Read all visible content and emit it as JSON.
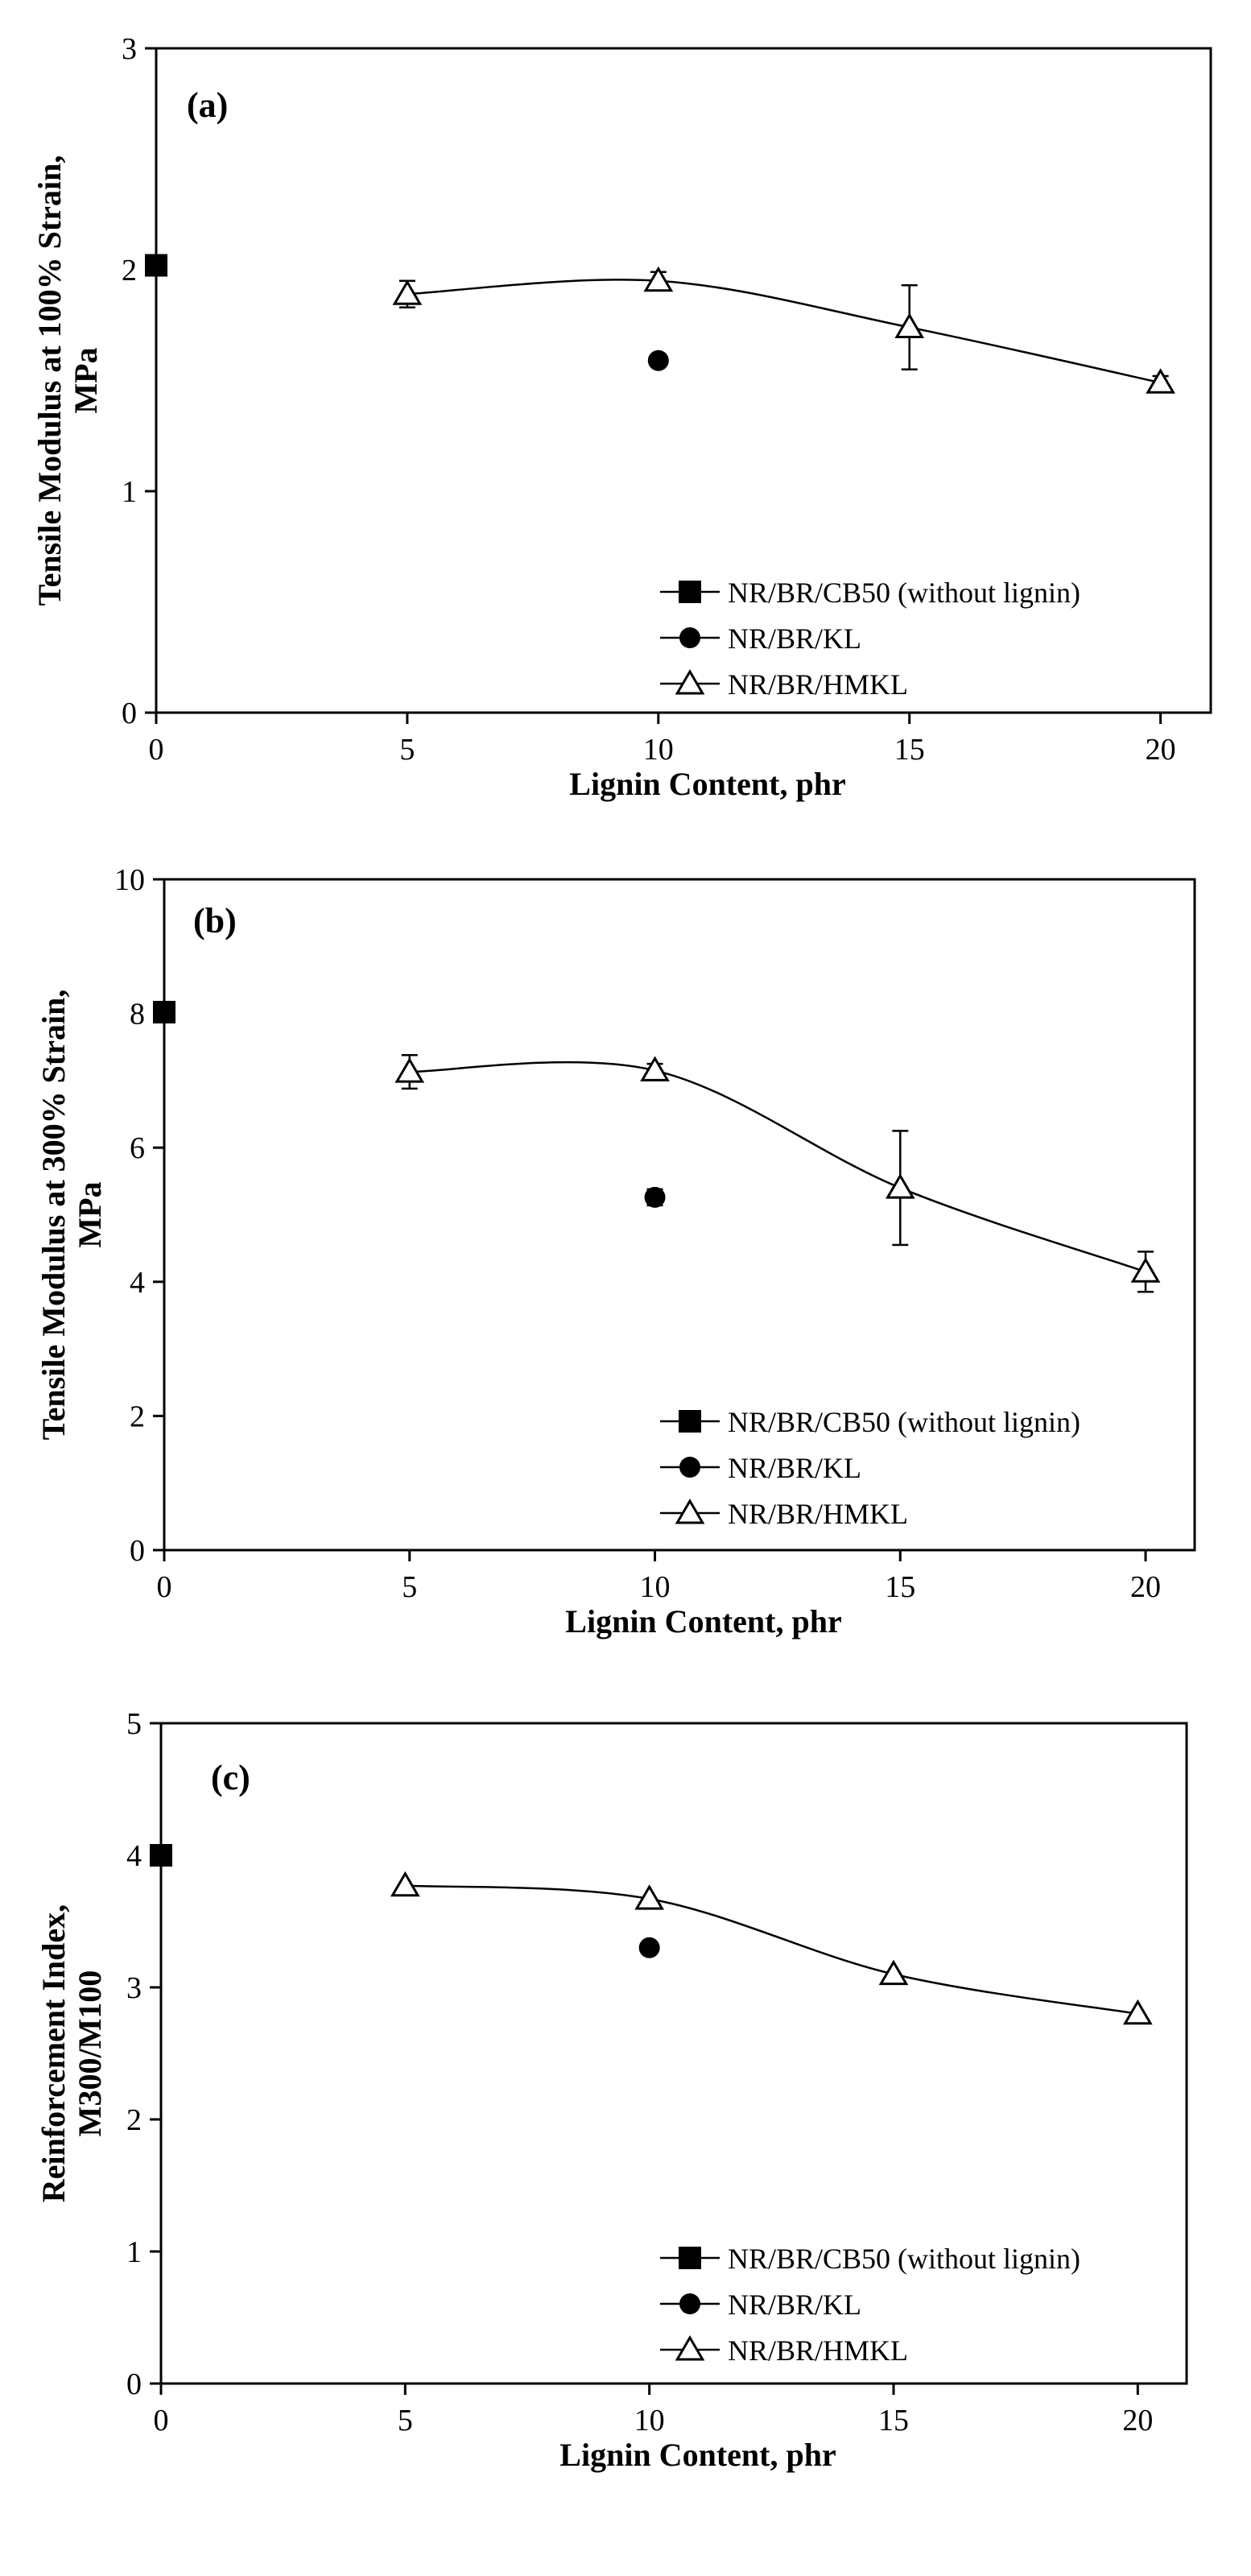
{
  "figure": {
    "legend_entries": [
      "NR/BR/CB50 (without lignin)",
      "NR/BR/KL",
      "NR/BR/HMKL"
    ]
  },
  "chart_data": [
    {
      "panel": "(a)",
      "type": "scatter",
      "xlabel": "Lignin Content, phr",
      "ylabel_lines": [
        "Tensile Modulus at 100% Strain,",
        "MPa"
      ],
      "xlim": [
        0,
        21
      ],
      "ylim": [
        0,
        3
      ],
      "xticks": [
        0,
        5,
        10,
        15,
        20
      ],
      "yticks": [
        0,
        1,
        2,
        3
      ],
      "legend_position": "bottom-right",
      "series": [
        {
          "name": "NR/BR/CB50 (without lignin)",
          "marker": "filled-square",
          "x": [
            0
          ],
          "y": [
            2.02
          ],
          "err": [
            0
          ]
        },
        {
          "name": "NR/BR/KL",
          "marker": "filled-circle",
          "x": [
            10
          ],
          "y": [
            1.59
          ],
          "err": [
            0
          ]
        },
        {
          "name": "NR/BR/HMKL",
          "marker": "open-triangle",
          "line": "smooth",
          "x": [
            5,
            10,
            15,
            20
          ],
          "y": [
            1.89,
            1.95,
            1.74,
            1.49
          ],
          "err": [
            0.06,
            0.04,
            0.19,
            0.03
          ]
        }
      ]
    },
    {
      "panel": "(b)",
      "type": "scatter",
      "xlabel": "Lignin Content, phr",
      "ylabel_lines": [
        "Tensile Modulus at 300% Strain,",
        "MPa"
      ],
      "xlim": [
        0,
        21
      ],
      "ylim": [
        0,
        10
      ],
      "xticks": [
        0,
        5,
        10,
        15,
        20
      ],
      "yticks": [
        0,
        2,
        4,
        6,
        8,
        10
      ],
      "legend_position": "bottom-right",
      "series": [
        {
          "name": "NR/BR/CB50 (without lignin)",
          "marker": "filled-square",
          "x": [
            0
          ],
          "y": [
            8.02
          ],
          "err": [
            0
          ]
        },
        {
          "name": "NR/BR/KL",
          "marker": "filled-circle",
          "x": [
            10
          ],
          "y": [
            5.26
          ],
          "err": [
            0.12
          ]
        },
        {
          "name": "NR/BR/HMKL",
          "marker": "open-triangle",
          "line": "smooth",
          "x": [
            5,
            10,
            15,
            20
          ],
          "y": [
            7.13,
            7.15,
            5.4,
            4.15
          ],
          "err": [
            0.25,
            0.1,
            0.85,
            0.3
          ]
        }
      ]
    },
    {
      "panel": "(c)",
      "type": "scatter",
      "xlabel": "Lignin Content, phr",
      "ylabel_lines": [
        "Reinforcement Index,",
        "M300/M100"
      ],
      "xlim": [
        0,
        21
      ],
      "ylim": [
        0,
        5
      ],
      "xticks": [
        0,
        5,
        10,
        15,
        20
      ],
      "yticks": [
        0,
        1,
        2,
        3,
        4,
        5
      ],
      "legend_position": "bottom-right",
      "series": [
        {
          "name": "NR/BR/CB50 (without lignin)",
          "marker": "filled-square",
          "x": [
            0
          ],
          "y": [
            4.0
          ],
          "err": [
            0
          ]
        },
        {
          "name": "NR/BR/KL",
          "marker": "filled-circle",
          "x": [
            10
          ],
          "y": [
            3.3
          ],
          "err": [
            0
          ]
        },
        {
          "name": "NR/BR/HMKL",
          "marker": "open-triangle",
          "line": "smooth",
          "x": [
            5,
            10,
            15,
            20
          ],
          "y": [
            3.77,
            3.67,
            3.1,
            2.8
          ],
          "err": [
            0,
            0,
            0,
            0
          ]
        }
      ]
    }
  ]
}
